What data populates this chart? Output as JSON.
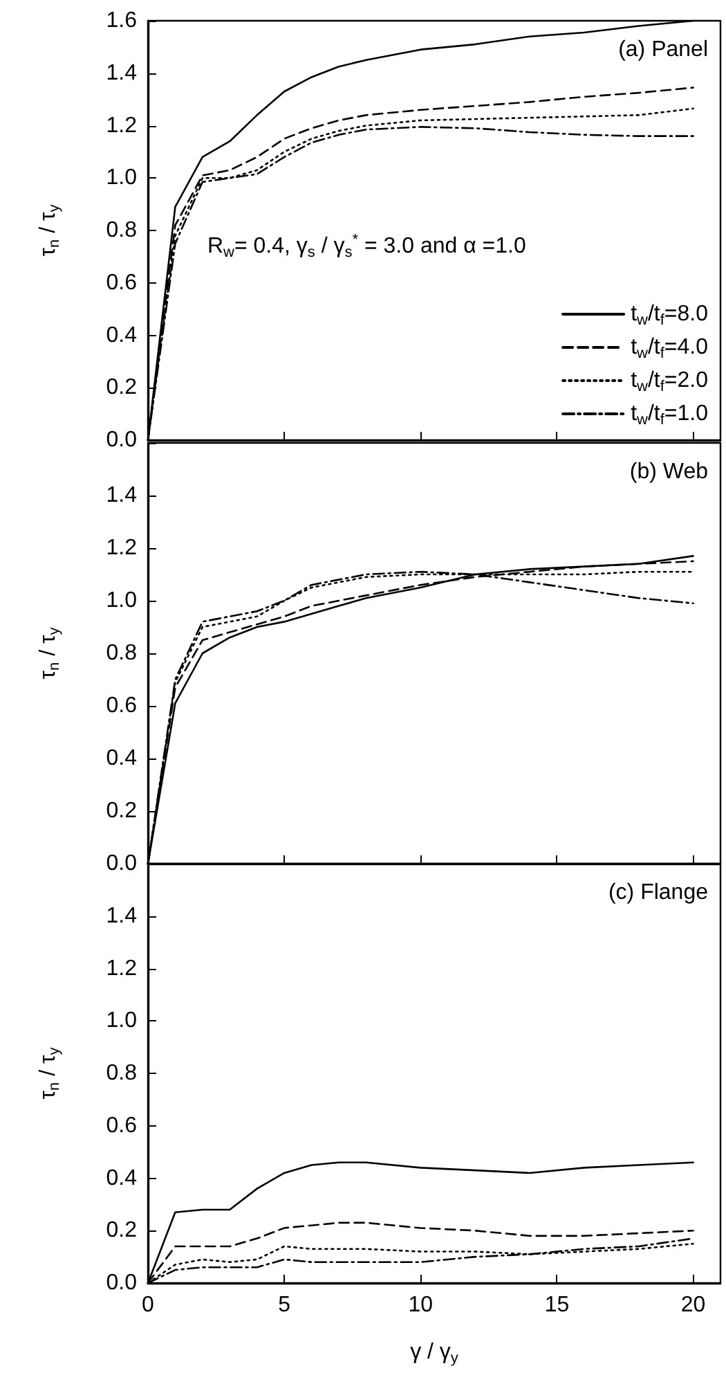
{
  "chart_data": [
    {
      "type": "line",
      "title": "(a) Panel",
      "ylabel": "τ$_{n}$ / τ$_{y}$",
      "annotations": [
        "R$_{w}$= 0.4, γ$_{s}$ / γ$_{s}$$^{*}$ = 3.0 and α =1.0"
      ],
      "x": [
        0,
        1,
        2,
        3,
        4,
        5,
        6,
        7,
        8,
        10,
        12,
        14,
        16,
        18,
        20
      ],
      "xlim": [
        0,
        21
      ],
      "xticks": [
        0,
        5,
        10,
        15,
        20
      ],
      "ylim": [
        0,
        1.6
      ],
      "yticks": [
        {
          "value": 0,
          "label": "0.0"
        },
        0.2,
        0.4,
        0.6,
        0.8,
        {
          "value": 1,
          "label": "1.0"
        },
        1.2,
        1.4,
        1.6
      ],
      "tick_labels": "y",
      "legend": "bottom right",
      "series": [
        {
          "name": "t$_{w}$/t$_{f}$=8.0",
          "color": "#000000",
          "line_style": "solid",
          "values": [
            0,
            0.89,
            1.08,
            1.14,
            1.24,
            1.33,
            1.385,
            1.425,
            1.45,
            1.49,
            1.51,
            1.54,
            1.555,
            1.58,
            1.6
          ]
        },
        {
          "name": "t$_{w}$/t$_{f}$=4.0",
          "color": "#000000",
          "line_style": "dashed",
          "values": [
            0,
            0.82,
            1.01,
            1.03,
            1.08,
            1.15,
            1.19,
            1.22,
            1.24,
            1.26,
            1.275,
            1.29,
            1.31,
            1.325,
            1.345
          ]
        },
        {
          "name": "t$_{w}$/t$_{f}$=2.0",
          "color": "#000000",
          "line_style": "dotted",
          "values": [
            0,
            0.78,
            1.0,
            1.0,
            1.03,
            1.1,
            1.15,
            1.18,
            1.2,
            1.22,
            1.225,
            1.23,
            1.235,
            1.24,
            1.265
          ]
        },
        {
          "name": "t$_{w}$/t$_{f}$=1.0",
          "color": "#000000",
          "line_style": "dashdot",
          "values": [
            0,
            0.75,
            0.985,
            1.0,
            1.015,
            1.08,
            1.135,
            1.165,
            1.185,
            1.195,
            1.19,
            1.175,
            1.165,
            1.16,
            1.16
          ]
        }
      ]
    },
    {
      "type": "line",
      "title": "(b) Web",
      "ylabel": "τ$_{n}$ / τ$_{y}$",
      "x": [
        0,
        1,
        2,
        3,
        4,
        5,
        6,
        7,
        8,
        10,
        12,
        14,
        16,
        18,
        20
      ],
      "xlim": [
        0,
        21
      ],
      "xticks": [
        0,
        5,
        10,
        15,
        20
      ],
      "ylim": [
        0,
        1.6
      ],
      "yticks": [
        {
          "value": 0,
          "label": "0.0"
        },
        0.2,
        0.4,
        0.6,
        0.8,
        {
          "value": 1,
          "label": "1.0"
        },
        1.2,
        1.4,
        {
          "value": 1.6,
          "label": null
        }
      ],
      "tick_labels": "y",
      "series": [
        {
          "color": "#000000",
          "line_style": "solid",
          "values": [
            0,
            0.61,
            0.8,
            0.86,
            0.9,
            0.92,
            0.95,
            0.98,
            1.01,
            1.05,
            1.1,
            1.12,
            1.13,
            1.14,
            1.17
          ]
        },
        {
          "color": "#000000",
          "line_style": "dashed",
          "values": [
            0,
            0.67,
            0.85,
            0.88,
            0.91,
            0.94,
            0.98,
            1.0,
            1.02,
            1.06,
            1.09,
            1.11,
            1.13,
            1.14,
            1.15
          ]
        },
        {
          "color": "#000000",
          "line_style": "dotted",
          "values": [
            0,
            0.69,
            0.9,
            0.92,
            0.94,
            1.0,
            1.05,
            1.07,
            1.09,
            1.1,
            1.1,
            1.1,
            1.1,
            1.11,
            1.11
          ]
        },
        {
          "color": "#000000",
          "line_style": "dashdot",
          "values": [
            0,
            0.7,
            0.92,
            0.94,
            0.96,
            1.0,
            1.06,
            1.08,
            1.1,
            1.11,
            1.1,
            1.07,
            1.04,
            1.01,
            0.99
          ]
        }
      ]
    },
    {
      "type": "line",
      "title": "(c) Flange",
      "xlabel": "γ / γ$_{y}$",
      "ylabel": "τ$_{n}$ / τ$_{y}$",
      "x": [
        0,
        1,
        2,
        3,
        4,
        5,
        6,
        7,
        8,
        10,
        12,
        14,
        16,
        18,
        20
      ],
      "xlim": [
        0,
        21
      ],
      "xticks": [
        0,
        5,
        10,
        15,
        20
      ],
      "ylim": [
        0,
        1.6
      ],
      "yticks": [
        {
          "value": 0,
          "label": "0.0"
        },
        0.2,
        0.4,
        0.6,
        0.8,
        {
          "value": 1,
          "label": "1.0"
        },
        1.2,
        1.4,
        {
          "value": 1.6,
          "label": null
        }
      ],
      "series": [
        {
          "color": "#000000",
          "line_style": "solid",
          "values": [
            0,
            0.27,
            0.28,
            0.28,
            0.36,
            0.42,
            0.45,
            0.46,
            0.46,
            0.44,
            0.43,
            0.42,
            0.44,
            0.45,
            0.46
          ]
        },
        {
          "color": "#000000",
          "line_style": "dashed",
          "values": [
            0,
            0.14,
            0.14,
            0.14,
            0.17,
            0.21,
            0.22,
            0.23,
            0.23,
            0.21,
            0.2,
            0.18,
            0.18,
            0.19,
            0.2
          ]
        },
        {
          "color": "#000000",
          "line_style": "dotted",
          "values": [
            0,
            0.07,
            0.09,
            0.08,
            0.09,
            0.14,
            0.13,
            0.13,
            0.13,
            0.12,
            0.12,
            0.11,
            0.12,
            0.13,
            0.15
          ]
        },
        {
          "color": "#000000",
          "line_style": "dashdot",
          "values": [
            0,
            0.05,
            0.06,
            0.06,
            0.06,
            0.09,
            0.08,
            0.08,
            0.08,
            0.08,
            0.1,
            0.11,
            0.13,
            0.14,
            0.17
          ]
        }
      ]
    }
  ]
}
